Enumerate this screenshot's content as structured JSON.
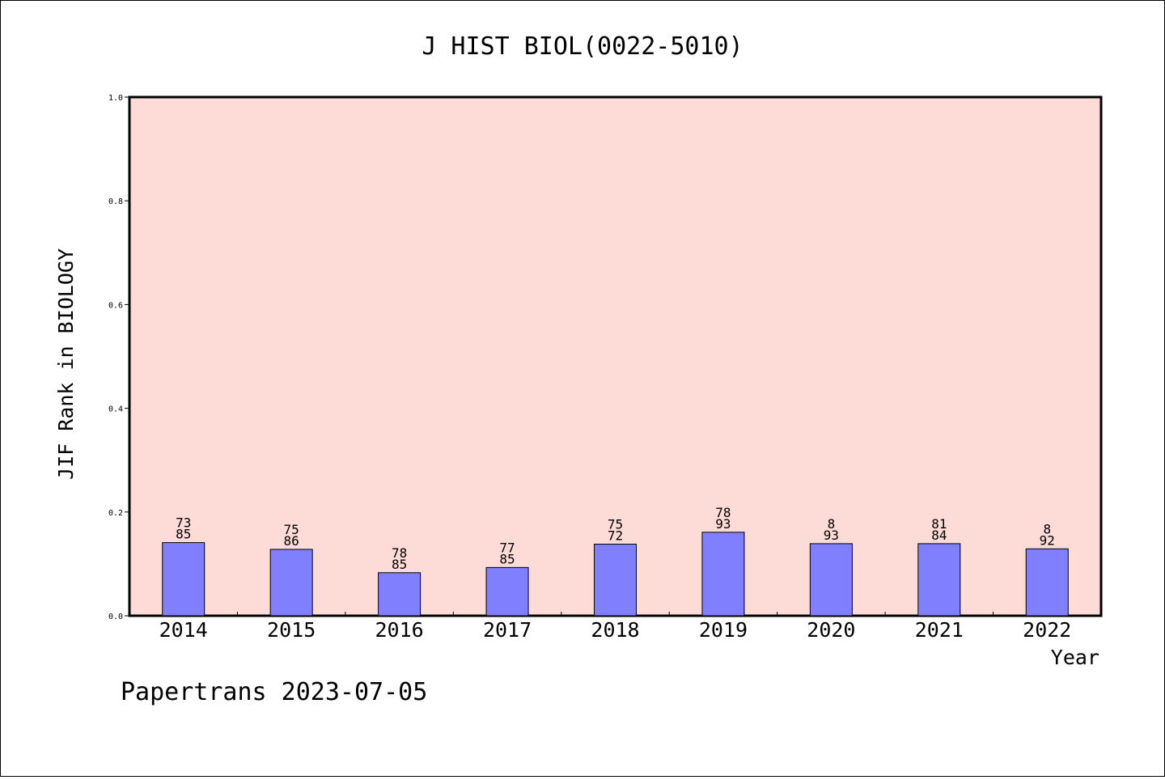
{
  "chart_data": {
    "type": "bar",
    "title": "J HIST BIOL(0022-5010)",
    "xlabel": "Year",
    "ylabel": "JIF Rank in BIOLOGY",
    "ylim": [
      0,
      1.0
    ],
    "yticks": [
      "0.0",
      "0.2",
      "0.4",
      "0.6",
      "0.8",
      "1.0"
    ],
    "grid": false,
    "categories": [
      "2014",
      "2015",
      "2016",
      "2017",
      "2018",
      "2019",
      "2020",
      "2021",
      "2022"
    ],
    "values": [
      0.141,
      0.128,
      0.083,
      0.093,
      0.138,
      0.161,
      0.139,
      0.139,
      0.129
    ],
    "label_top": [
      "73",
      "75",
      "78",
      "77",
      "75",
      "78",
      "8",
      "81",
      "8"
    ],
    "label_bottom": [
      "85",
      "86",
      "85",
      "85",
      "72",
      "93",
      "93",
      "84",
      "92"
    ],
    "colors": {
      "plot_bg": "#fddbd7",
      "bar_fill": "#8080ff",
      "bar_stroke": "#000000"
    }
  },
  "footer": {
    "credit": "Papertrans 2023-07-05"
  }
}
